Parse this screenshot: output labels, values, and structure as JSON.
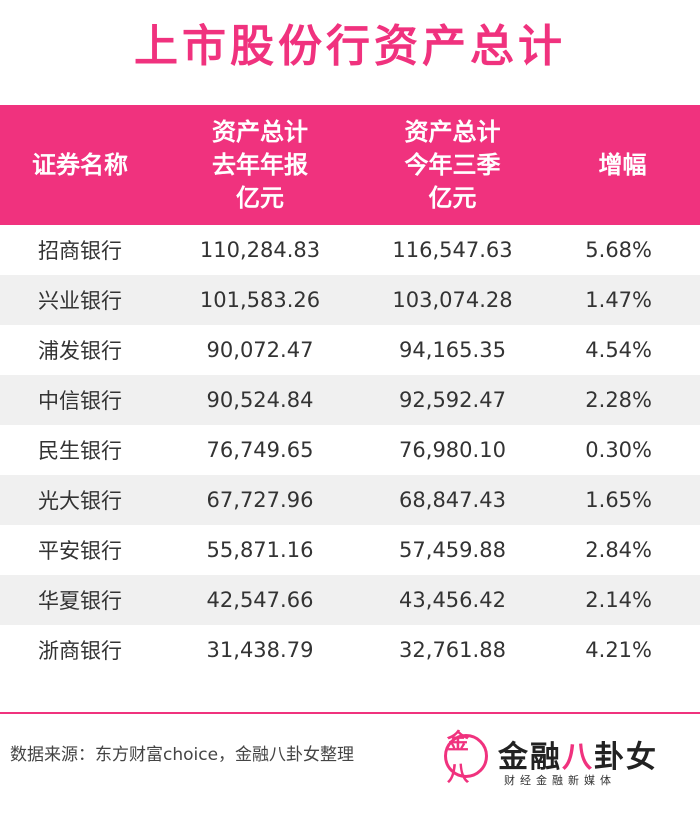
{
  "title": "上市股份行资产总计",
  "header": {
    "col1": "证券名称",
    "col2_line1": "资产总计",
    "col2_line2": "去年年报",
    "col2_line3": "亿元",
    "col3_line1": "资产总计",
    "col3_line2": "今年三季",
    "col3_line3": "亿元",
    "col4": "增幅"
  },
  "rows": [
    {
      "name": "招商银行",
      "last_year": "110,284.83",
      "q3": "116,547.63",
      "growth": "5.68%"
    },
    {
      "name": "兴业银行",
      "last_year": "101,583.26",
      "q3": "103,074.28",
      "growth": "1.47%"
    },
    {
      "name": "浦发银行",
      "last_year": "90,072.47",
      "q3": "94,165.35",
      "growth": "4.54%"
    },
    {
      "name": "中信银行",
      "last_year": "90,524.84",
      "q3": "92,592.47",
      "growth": "2.28%"
    },
    {
      "name": "民生银行",
      "last_year": "76,749.65",
      "q3": "76,980.10",
      "growth": "0.30%"
    },
    {
      "name": "光大银行",
      "last_year": "67,727.96",
      "q3": "68,847.43",
      "growth": "1.65%"
    },
    {
      "name": "平安银行",
      "last_year": "55,871.16",
      "q3": "57,459.88",
      "growth": "2.84%"
    },
    {
      "name": "华夏银行",
      "last_year": "42,547.66",
      "q3": "43,456.42",
      "growth": "2.14%"
    },
    {
      "name": "浙商银行",
      "last_year": "31,438.79",
      "q3": "32,761.88",
      "growth": "4.21%"
    }
  ],
  "footer": {
    "source": "数据来源：东方财富choice，金融八卦女整理",
    "logo_mark": "金八",
    "logo_name_a": "金融",
    "logo_name_b": "八",
    "logo_name_c": "卦女",
    "logo_sub": "财经金融新媒体"
  },
  "colors": {
    "accent": "#f0327e",
    "stripe": "#f0f0f0"
  }
}
